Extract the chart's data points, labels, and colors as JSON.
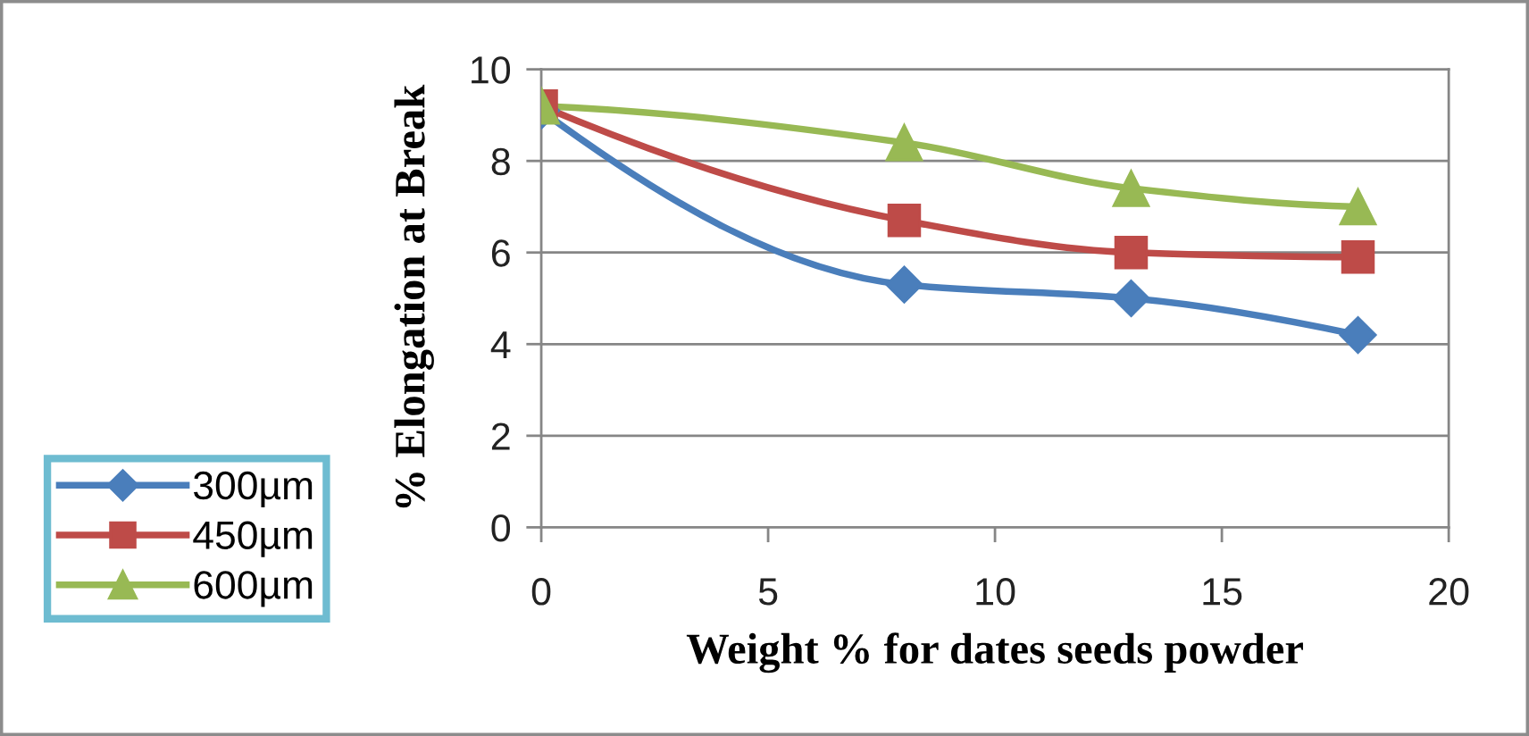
{
  "chart_data": {
    "type": "line",
    "xlabel": "Weight % for dates seeds powder",
    "ylabel": "% Elongation at Break",
    "x": [
      0,
      8,
      13,
      18
    ],
    "series": [
      {
        "name": "300µm",
        "color": "#4a7ebb",
        "marker": "diamond",
        "values": [
          9.1,
          5.3,
          5.0,
          4.2
        ]
      },
      {
        "name": "450µm",
        "color": "#be4b48",
        "marker": "square",
        "values": [
          9.2,
          6.7,
          6.0,
          5.9
        ]
      },
      {
        "name": "600µm",
        "color": "#98b954",
        "marker": "triangle",
        "values": [
          9.2,
          8.4,
          7.4,
          7.0
        ]
      }
    ],
    "xlim": [
      0,
      20
    ],
    "xticks": [
      0,
      5,
      10,
      15,
      20
    ],
    "ylim": [
      0,
      10
    ],
    "yticks": [
      0,
      2,
      4,
      6,
      8,
      10
    ],
    "grid": "y",
    "legend": "left",
    "line_style": "solid"
  }
}
